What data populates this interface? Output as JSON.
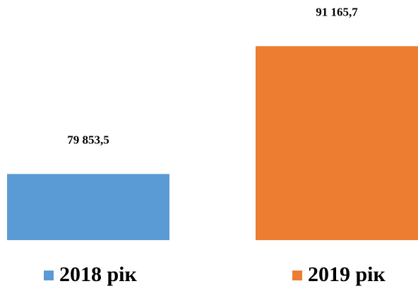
{
  "chart_data": {
    "type": "bar",
    "categories": [
      null
    ],
    "series": [
      {
        "name": "2018 рік",
        "color": "#5b9bd5",
        "values": [
          79853.5
        ],
        "value_labels": [
          "79 853,5"
        ]
      },
      {
        "name": "2019 рік",
        "color": "#ed7d31",
        "values": [
          91165.7
        ],
        "value_labels": [
          "91 165,7"
        ]
      }
    ],
    "ylim": [
      74000,
      92000
    ]
  }
}
